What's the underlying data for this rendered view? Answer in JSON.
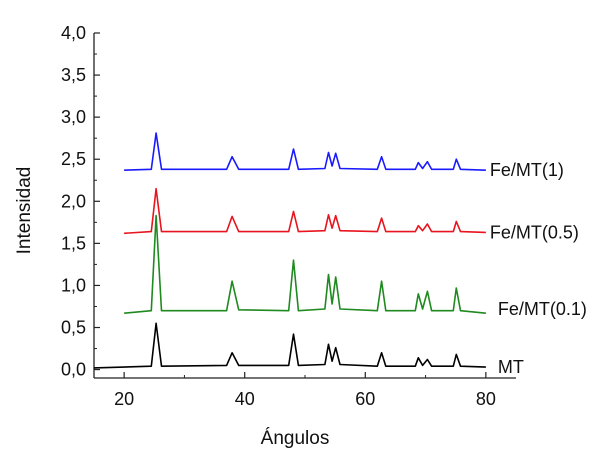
{
  "chart_data": {
    "type": "line",
    "title": "",
    "xlabel": "Ángulos",
    "ylabel": "Intensidad",
    "xlim": [
      15,
      85
    ],
    "ylim": [
      -0.1,
      4.0
    ],
    "x_ticks": [
      20,
      40,
      60,
      80
    ],
    "x_tick_labels": [
      "20",
      "40",
      "60",
      "80"
    ],
    "y_ticks": [
      0.0,
      0.5,
      1.0,
      1.5,
      2.0,
      2.5,
      3.0,
      3.5,
      4.0
    ],
    "y_tick_labels": [
      "0,0",
      "0,5",
      "1,0",
      "1,5",
      "2,0",
      "2,5",
      "3,0",
      "3,5",
      "4,0"
    ],
    "grid": false,
    "legend": "series labels placed at right end of each curve",
    "series": [
      {
        "name": "MT",
        "color": "#000000",
        "x": [
          15,
          24.5,
          25.3,
          26.2,
          37,
          37.9,
          39,
          47.3,
          48.1,
          48.9,
          53.3,
          53.9,
          54.5,
          55.1,
          55.8,
          62,
          62.7,
          63.4,
          68.3,
          68.8,
          69.5,
          70.3,
          71,
          74.6,
          75.1,
          75.8,
          80
        ],
        "y": [
          0.02,
          0.04,
          0.55,
          0.04,
          0.05,
          0.2,
          0.05,
          0.05,
          0.42,
          0.05,
          0.06,
          0.3,
          0.1,
          0.26,
          0.06,
          0.04,
          0.2,
          0.04,
          0.04,
          0.14,
          0.05,
          0.12,
          0.04,
          0.04,
          0.18,
          0.04,
          0.03
        ]
      },
      {
        "name": "Fe/MT(0.1)",
        "color": "#1f8a1f",
        "x": [
          20,
          24.5,
          25.3,
          26.2,
          37,
          37.9,
          39,
          47.3,
          48.1,
          48.9,
          53.3,
          53.9,
          54.5,
          55.1,
          55.8,
          62,
          62.7,
          63.4,
          68.3,
          68.8,
          69.5,
          70.3,
          71,
          74.6,
          75.1,
          75.8,
          80
        ],
        "y": [
          0.67,
          0.7,
          1.83,
          0.7,
          0.7,
          1.05,
          0.71,
          0.7,
          1.3,
          0.7,
          0.72,
          1.13,
          0.78,
          1.1,
          0.72,
          0.7,
          1.05,
          0.7,
          0.7,
          0.9,
          0.72,
          0.93,
          0.7,
          0.7,
          0.97,
          0.7,
          0.67
        ]
      },
      {
        "name": "Fe/MT(0.5)",
        "color": "#e8141e",
        "x": [
          20,
          24.5,
          25.3,
          26.2,
          37,
          37.9,
          39,
          47.3,
          48.1,
          48.9,
          53.3,
          53.9,
          54.5,
          55.1,
          55.8,
          62,
          62.7,
          63.4,
          68.3,
          68.8,
          69.5,
          70.3,
          71,
          74.6,
          75.1,
          75.8,
          80
        ],
        "y": [
          1.62,
          1.64,
          2.15,
          1.64,
          1.64,
          1.82,
          1.64,
          1.64,
          1.88,
          1.64,
          1.65,
          1.84,
          1.68,
          1.83,
          1.65,
          1.64,
          1.8,
          1.64,
          1.64,
          1.71,
          1.65,
          1.73,
          1.64,
          1.64,
          1.76,
          1.64,
          1.63
        ]
      },
      {
        "name": "Fe/MT(1)",
        "color": "#1a1aff",
        "x": [
          20,
          24.5,
          25.3,
          26.2,
          37,
          37.9,
          39,
          47.3,
          48.1,
          48.9,
          53.3,
          53.9,
          54.5,
          55.1,
          55.8,
          62,
          62.7,
          63.4,
          68.3,
          68.8,
          69.5,
          70.3,
          71,
          74.6,
          75.1,
          75.8,
          80
        ],
        "y": [
          2.37,
          2.38,
          2.81,
          2.38,
          2.38,
          2.53,
          2.38,
          2.38,
          2.62,
          2.38,
          2.39,
          2.58,
          2.42,
          2.57,
          2.39,
          2.38,
          2.53,
          2.38,
          2.38,
          2.46,
          2.39,
          2.47,
          2.38,
          2.38,
          2.5,
          2.38,
          2.37
        ]
      }
    ]
  }
}
